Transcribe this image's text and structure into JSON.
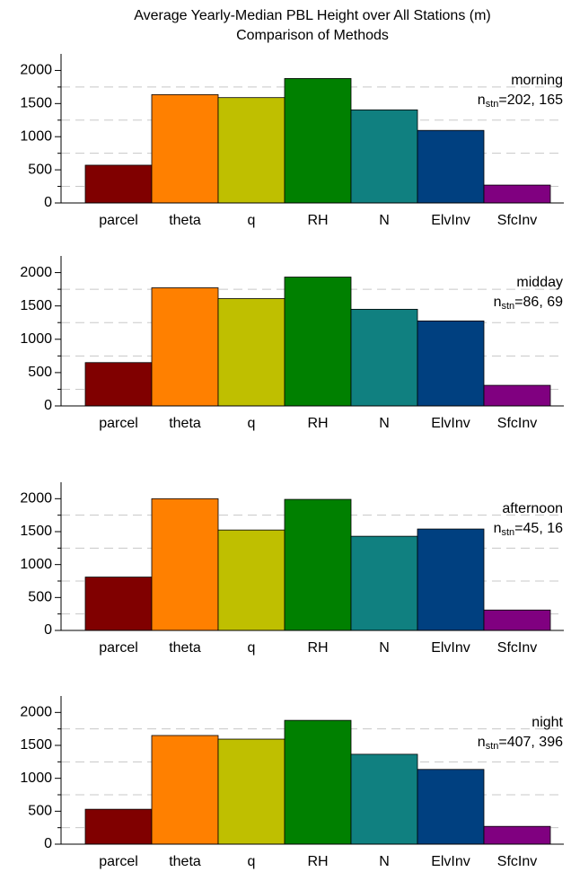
{
  "title": "Average Yearly-Median PBL Height over All Stations (m)",
  "subtitle": "Comparison of Methods",
  "chart_data": [
    {
      "type": "bar",
      "annotation": "morning",
      "n_label": "n",
      "n_sub": "stn",
      "n_value": "=202, 165",
      "categories": [
        "parcel",
        "theta",
        "q",
        "RH",
        "N",
        "ElvInv",
        "SfcInv"
      ],
      "values": [
        570,
        1635,
        1590,
        1878,
        1405,
        1095,
        270
      ],
      "colors": [
        "#800000",
        "#ff8000",
        "#bfbf00",
        "#008000",
        "#108080",
        "#004080",
        "#800080"
      ],
      "ylim": [
        0,
        2250
      ],
      "yticks": [
        0,
        500,
        1000,
        1500,
        2000
      ],
      "yminor": [
        250,
        750,
        1250,
        1750
      ],
      "grid": true
    },
    {
      "type": "bar",
      "annotation": "midday",
      "n_label": "n",
      "n_sub": "stn",
      "n_value": "=86, 69",
      "categories": [
        "parcel",
        "theta",
        "q",
        "RH",
        "N",
        "ElvInv",
        "SfcInv"
      ],
      "values": [
        650,
        1772,
        1610,
        1933,
        1450,
        1275,
        309
      ],
      "colors": [
        "#800000",
        "#ff8000",
        "#bfbf00",
        "#008000",
        "#108080",
        "#004080",
        "#800080"
      ],
      "ylim": [
        0,
        2250
      ],
      "yticks": [
        0,
        500,
        1000,
        1500,
        2000
      ],
      "yminor": [
        250,
        750,
        1250,
        1750
      ],
      "grid": true
    },
    {
      "type": "bar",
      "annotation": "afternoon",
      "n_label": "n",
      "n_sub": "stn",
      "n_value": "=45, 16",
      "categories": [
        "parcel",
        "theta",
        "q",
        "RH",
        "N",
        "ElvInv",
        "SfcInv"
      ],
      "values": [
        810,
        2000,
        1525,
        1990,
        1430,
        1540,
        310
      ],
      "colors": [
        "#800000",
        "#ff8000",
        "#bfbf00",
        "#008000",
        "#108080",
        "#004080",
        "#800080"
      ],
      "ylim": [
        0,
        2250
      ],
      "yticks": [
        0,
        500,
        1000,
        1500,
        2000
      ],
      "yminor": [
        250,
        750,
        1250,
        1750
      ],
      "grid": true
    },
    {
      "type": "bar",
      "annotation": "night",
      "n_label": "n",
      "n_sub": "stn",
      "n_value": "=407, 396",
      "categories": [
        "parcel",
        "theta",
        "q",
        "RH",
        "N",
        "ElvInv",
        "SfcInv"
      ],
      "values": [
        530,
        1650,
        1595,
        1880,
        1365,
        1135,
        270
      ],
      "colors": [
        "#800000",
        "#ff8000",
        "#bfbf00",
        "#008000",
        "#108080",
        "#004080",
        "#800080"
      ],
      "ylim": [
        0,
        2250
      ],
      "yticks": [
        0,
        500,
        1000,
        1500,
        2000
      ],
      "yminor": [
        250,
        750,
        1250,
        1750
      ],
      "grid": true
    }
  ]
}
